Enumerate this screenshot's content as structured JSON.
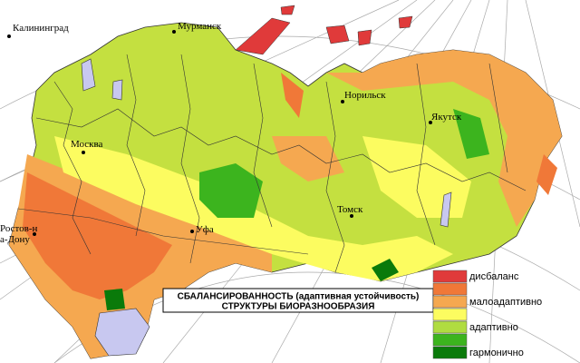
{
  "map": {
    "cities": [
      {
        "label": "Калининград"
      },
      {
        "label": "Мурманск"
      },
      {
        "label": "Москва"
      },
      {
        "label": "Норильск"
      },
      {
        "label": "Якутск"
      },
      {
        "label": "Томск"
      },
      {
        "label": "Уфа"
      },
      {
        "label": "Ростов-на-Дону"
      }
    ],
    "title": [
      "СБАЛАНСИРОВАННОСТЬ (адаптивная устойчивость)",
      "СТРУКТУРЫ БИОРАЗНООБРАЗИЯ"
    ],
    "legend": {
      "colors": [
        "#e03a3a",
        "#f07838",
        "#f5a850",
        "#fcfc60",
        "#b0dc40",
        "#3cb41e",
        "#0a7a0a"
      ],
      "labels": [
        "дисбаланс",
        null,
        "малоадаптивно",
        null,
        "адаптивно",
        null,
        "гармонично"
      ]
    }
  }
}
